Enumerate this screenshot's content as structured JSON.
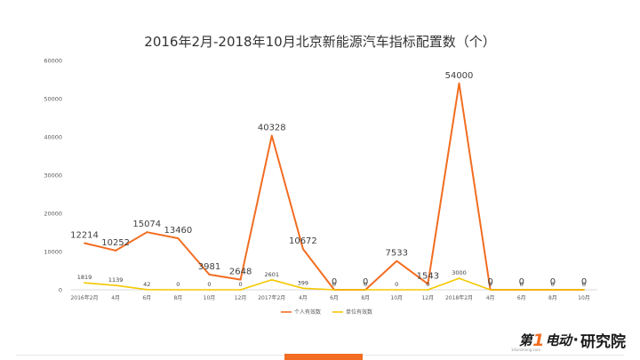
{
  "chart_data": {
    "type": "line",
    "title": "2016年2月-2018年10月北京新能源汽车指标配置数（个）",
    "xlabel": "",
    "ylabel": "",
    "categories": [
      "2016年2月",
      "4月",
      "6月",
      "8月",
      "10月",
      "12月",
      "2017年2月",
      "4月",
      "6月",
      "8月",
      "10月",
      "12月",
      "2018年2月",
      "4月",
      "6月",
      "8月",
      "10月"
    ],
    "ylim": [
      0,
      60000
    ],
    "yticks": [
      0,
      10000,
      20000,
      30000,
      40000,
      50000,
      60000
    ],
    "grid": false,
    "legend_position": "bottom",
    "series": [
      {
        "name": "个人有效数",
        "color": "#f26d21",
        "values": [
          12214,
          10252,
          15074,
          13460,
          3981,
          2648,
          40328,
          10672,
          0,
          0,
          7533,
          1543,
          54000,
          0,
          0,
          0,
          0
        ],
        "labels": [
          "12214",
          "10252",
          "15074",
          "13460",
          "3981",
          "2648",
          "40328",
          "10672",
          "0",
          "0",
          "7533",
          "1543",
          "54000",
          "0",
          "0",
          "0",
          "0"
        ]
      },
      {
        "name": "单位有效数",
        "color": "#f5c800",
        "values": [
          1819,
          1139,
          42,
          0,
          0,
          0,
          2601,
          399,
          0,
          0,
          0,
          0,
          3000,
          0,
          0,
          0,
          0
        ],
        "labels": [
          "1819",
          "1139",
          "42",
          "0",
          "0",
          "0",
          "2601",
          "399",
          "0",
          "0",
          "0",
          "0",
          "3000",
          "0",
          "0",
          "0",
          "0"
        ]
      }
    ]
  },
  "brand": {
    "mark": "第",
    "one": "1",
    "mark2": "电动",
    "dot": "·",
    "text": "研究院",
    "sub": "1dianzhong.com"
  }
}
